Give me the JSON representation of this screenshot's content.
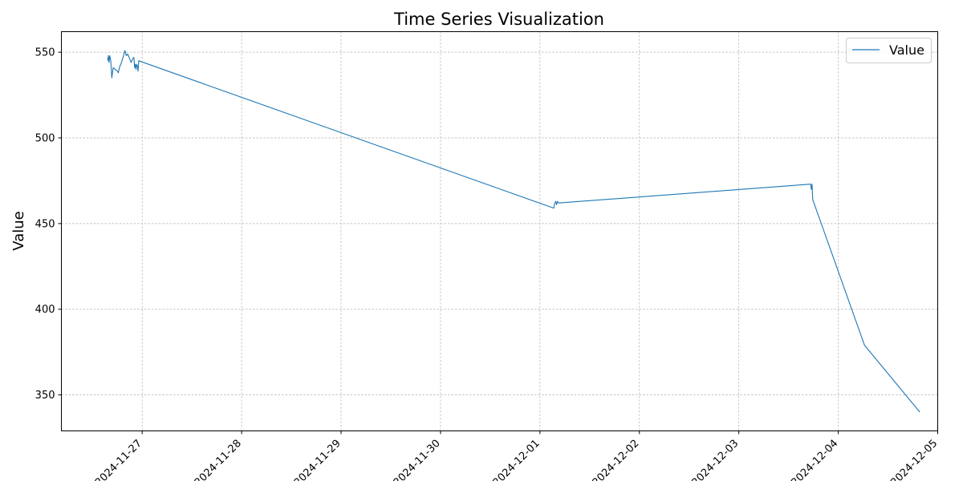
{
  "chart_data": {
    "type": "line",
    "title": "Time Series Visualization",
    "xlabel": "",
    "ylabel": "Value",
    "grid": true,
    "legend_position": "top-right",
    "xlim": [
      "2024-11-26T04:30",
      "2024-12-05T00:00"
    ],
    "ylim": [
      329,
      562
    ],
    "yticks": [
      350,
      400,
      450,
      500,
      550
    ],
    "xticks": [
      "2024-11-27",
      "2024-11-28",
      "2024-11-29",
      "2024-11-30",
      "2024-12-01",
      "2024-12-02",
      "2024-12-03",
      "2024-12-04",
      "2024-12-05"
    ],
    "series": [
      {
        "name": "Value",
        "color": "#1f77b4",
        "points": [
          [
            "2024-11-26T15:40",
            545
          ],
          [
            "2024-11-26T15:50",
            548
          ],
          [
            "2024-11-26T16:00",
            544
          ],
          [
            "2024-11-26T16:10",
            548
          ],
          [
            "2024-11-26T16:25",
            545
          ],
          [
            "2024-11-26T16:40",
            535
          ],
          [
            "2024-11-26T17:00",
            541
          ],
          [
            "2024-11-26T17:30",
            540
          ],
          [
            "2024-11-26T18:00",
            539
          ],
          [
            "2024-11-26T18:15",
            538
          ],
          [
            "2024-11-26T18:30",
            541
          ],
          [
            "2024-11-26T19:00",
            544
          ],
          [
            "2024-11-26T19:30",
            548
          ],
          [
            "2024-11-26T19:50",
            551
          ],
          [
            "2024-11-26T20:10",
            548
          ],
          [
            "2024-11-26T20:30",
            549
          ],
          [
            "2024-11-26T20:50",
            547
          ],
          [
            "2024-11-26T21:20",
            544
          ],
          [
            "2024-11-26T21:40",
            546
          ],
          [
            "2024-11-26T22:00",
            547
          ],
          [
            "2024-11-26T22:10",
            541
          ],
          [
            "2024-11-26T22:20",
            543
          ],
          [
            "2024-11-26T22:30",
            540
          ],
          [
            "2024-11-26T22:40",
            543
          ],
          [
            "2024-11-26T22:50",
            542
          ],
          [
            "2024-11-26T23:00",
            539
          ],
          [
            "2024-11-26T23:10",
            545
          ],
          [
            "2024-12-01T03:20",
            459
          ],
          [
            "2024-12-01T03:35",
            462
          ],
          [
            "2024-12-01T03:50",
            463
          ],
          [
            "2024-12-01T04:00",
            461
          ],
          [
            "2024-12-01T04:15",
            463
          ],
          [
            "2024-12-01T04:30",
            462
          ],
          [
            "2024-12-03T17:20",
            473
          ],
          [
            "2024-12-03T17:30",
            470
          ],
          [
            "2024-12-03T17:40",
            473
          ],
          [
            "2024-12-03T17:50",
            464
          ],
          [
            "2024-12-04T06:20",
            379
          ],
          [
            "2024-12-04T19:40",
            340
          ]
        ]
      }
    ]
  }
}
